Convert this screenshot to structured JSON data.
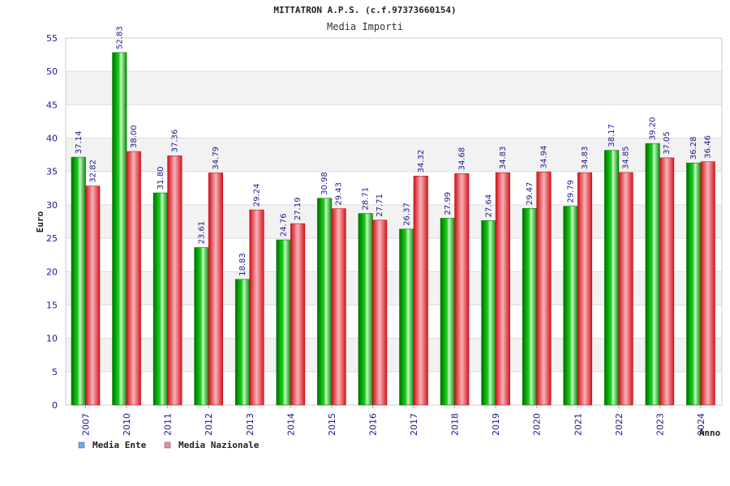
{
  "chart_data": {
    "type": "bar",
    "title": "MITTATRON A.P.S. (c.f.97373660154)",
    "subtitle": "Media Importi",
    "xlabel": "Anno",
    "ylabel": "Euro",
    "ylim": [
      0,
      55
    ],
    "yticks": [
      0,
      5,
      10,
      15,
      20,
      25,
      30,
      35,
      40,
      45,
      50,
      55
    ],
    "grid": true,
    "categories": [
      "2007",
      "2010",
      "2011",
      "2012",
      "2013",
      "2014",
      "2015",
      "2016",
      "2017",
      "2018",
      "2019",
      "2020",
      "2021",
      "2022",
      "2023",
      "2024"
    ],
    "series": [
      {
        "name": "Media Ente",
        "color": "#00a000",
        "legend_color": "#6fa8e8",
        "values": [
          37.14,
          52.83,
          31.8,
          23.61,
          18.83,
          24.76,
          30.98,
          28.71,
          26.37,
          27.99,
          27.64,
          29.47,
          29.79,
          38.17,
          39.2,
          36.28
        ],
        "labels": [
          "37.14",
          "52.83",
          "31.80",
          "23.61",
          "18.83",
          "24.76",
          "30.98",
          "28.71",
          "26.37",
          "27.99",
          "27.64",
          "29.47",
          "29.79",
          "38.17",
          "39.20",
          "36.28"
        ]
      },
      {
        "name": "Media Nazionale",
        "color": "#e8202a",
        "legend_color": "#e88aa6",
        "values": [
          32.82,
          38.0,
          37.36,
          34.79,
          29.24,
          27.19,
          29.43,
          27.71,
          34.32,
          34.68,
          34.83,
          34.94,
          34.83,
          34.85,
          37.05,
          36.46
        ],
        "labels": [
          "32.82",
          "38.00",
          "37.36",
          "34.79",
          "29.24",
          "27.19",
          "29.43",
          "27.71",
          "34.32",
          "34.68",
          "34.83",
          "34.94",
          "34.83",
          "34.85",
          "37.05",
          "36.46"
        ]
      }
    ]
  }
}
